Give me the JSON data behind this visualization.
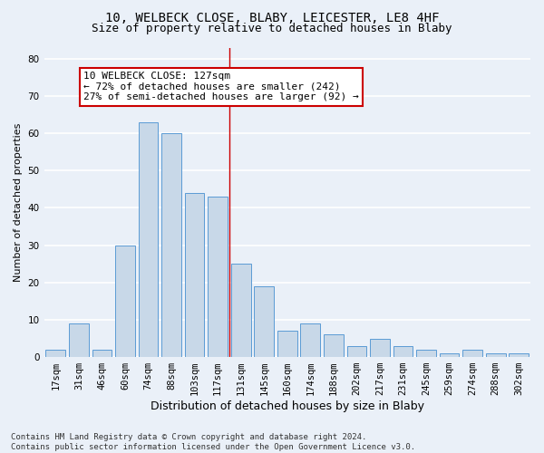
{
  "title1": "10, WELBECK CLOSE, BLABY, LEICESTER, LE8 4HF",
  "title2": "Size of property relative to detached houses in Blaby",
  "xlabel": "Distribution of detached houses by size in Blaby",
  "ylabel": "Number of detached properties",
  "categories": [
    "17sqm",
    "31sqm",
    "46sqm",
    "60sqm",
    "74sqm",
    "88sqm",
    "103sqm",
    "117sqm",
    "131sqm",
    "145sqm",
    "160sqm",
    "174sqm",
    "188sqm",
    "202sqm",
    "217sqm",
    "231sqm",
    "245sqm",
    "259sqm",
    "274sqm",
    "288sqm",
    "302sqm"
  ],
  "bar_heights": [
    2,
    9,
    2,
    30,
    63,
    60,
    44,
    43,
    25,
    19,
    7,
    9,
    6,
    3,
    5,
    3,
    2,
    1,
    2,
    1,
    1
  ],
  "bar_color": "#c8d8e8",
  "bar_edge_color": "#5b9bd5",
  "background_color": "#eaf0f8",
  "grid_color": "#ffffff",
  "vline_color": "#cc0000",
  "annotation_text": "10 WELBECK CLOSE: 127sqm\n← 72% of detached houses are smaller (242)\n27% of semi-detached houses are larger (92) →",
  "annotation_box_color": "#ffffff",
  "annotation_border_color": "#cc0000",
  "ylim": [
    0,
    83
  ],
  "yticks": [
    0,
    10,
    20,
    30,
    40,
    50,
    60,
    70,
    80
  ],
  "footnote": "Contains HM Land Registry data © Crown copyright and database right 2024.\nContains public sector information licensed under the Open Government Licence v3.0.",
  "title1_fontsize": 10,
  "title2_fontsize": 9,
  "xlabel_fontsize": 9,
  "ylabel_fontsize": 8,
  "tick_fontsize": 7.5,
  "annotation_fontsize": 8,
  "footnote_fontsize": 6.5
}
